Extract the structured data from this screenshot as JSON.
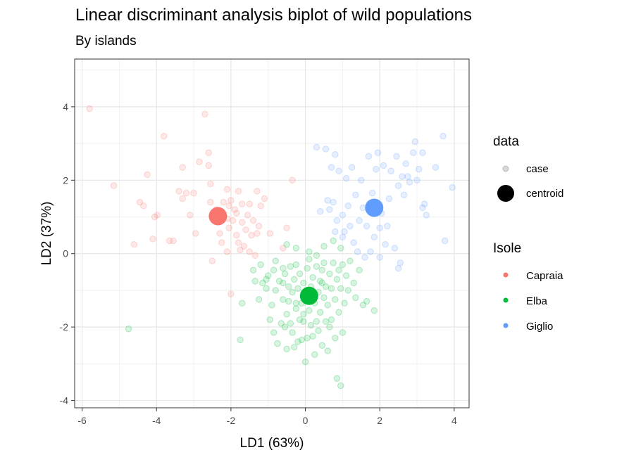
{
  "chart_data": {
    "type": "scatter",
    "title": "Linear discriminant analysis biplot of wild populations",
    "subtitle": "By islands",
    "xlabel": "LD1 (63%)",
    "ylabel": "LD2 (37%)",
    "xlim": [
      -6.2,
      4.4
    ],
    "ylim": [
      -4.2,
      5.3
    ],
    "xticks": [
      -6,
      -4,
      -2,
      0,
      2,
      4
    ],
    "yticks": [
      -4,
      -2,
      0,
      2,
      4
    ],
    "xtick_labels": [
      "-6",
      "-4",
      "-2",
      "0",
      "2",
      "4"
    ],
    "ytick_labels": [
      "-4",
      "-2",
      "0",
      "2",
      "4"
    ],
    "grid": true,
    "legend_position": "right",
    "legend": {
      "data_title": "data",
      "data_items": [
        "case",
        "centroid"
      ],
      "group_title": "Isole",
      "group_items": [
        "Capraia",
        "Elba",
        "Giglio"
      ]
    },
    "colors": {
      "Capraia": "#F8766D",
      "Elba": "#00BA38",
      "Giglio": "#619CFF"
    },
    "series": [
      {
        "name": "Capraia",
        "centroid": [
          -2.35,
          1.02
        ],
        "points": [
          [
            -5.8,
            3.95
          ],
          [
            -5.15,
            1.85
          ],
          [
            -4.25,
            2.15
          ],
          [
            -4.45,
            1.4
          ],
          [
            -4.35,
            1.3
          ],
          [
            -4.6,
            0.25
          ],
          [
            -4.1,
            0.4
          ],
          [
            -4.05,
            1.0
          ],
          [
            -3.98,
            1.05
          ],
          [
            -3.8,
            3.2
          ],
          [
            -3.65,
            0.35
          ],
          [
            -3.55,
            0.35
          ],
          [
            -3.4,
            1.7
          ],
          [
            -3.3,
            2.35
          ],
          [
            -3.3,
            1.5
          ],
          [
            -3.1,
            1.05
          ],
          [
            -3.2,
            1.65
          ],
          [
            -3.0,
            1.65
          ],
          [
            -2.95,
            0.55
          ],
          [
            -2.85,
            2.5
          ],
          [
            -2.7,
            3.8
          ],
          [
            -2.6,
            2.75
          ],
          [
            -2.6,
            2.4
          ],
          [
            -2.55,
            1.4
          ],
          [
            -2.55,
            1.9
          ],
          [
            -2.5,
            -0.2
          ],
          [
            -2.4,
            1.2
          ],
          [
            -2.3,
            0.55
          ],
          [
            -2.25,
            0.3
          ],
          [
            -2.2,
            1.4
          ],
          [
            -2.1,
            0.05
          ],
          [
            -2.1,
            0.95
          ],
          [
            -2.05,
            1.3
          ],
          [
            -2.05,
            0.7
          ],
          [
            -2.0,
            1.45
          ],
          [
            -1.95,
            0.9
          ],
          [
            -1.85,
            0.5
          ],
          [
            -1.85,
            1.1
          ],
          [
            -1.8,
            1.7
          ],
          [
            -1.8,
            0.3
          ],
          [
            -1.75,
            0.1
          ],
          [
            -1.7,
            1.35
          ],
          [
            -1.7,
            0.85
          ],
          [
            -1.65,
            0.2
          ],
          [
            -1.6,
            0.65
          ],
          [
            -1.55,
            1.05
          ],
          [
            -1.5,
            1.35
          ],
          [
            -1.45,
            0.5
          ],
          [
            -1.4,
            0.9
          ],
          [
            -1.3,
            1.7
          ],
          [
            -1.25,
            0.75
          ],
          [
            -1.2,
            1.3
          ],
          [
            -1.1,
            1.5
          ],
          [
            -0.95,
            0.55
          ],
          [
            -2.1,
            1.75
          ],
          [
            -1.9,
            1.2
          ],
          [
            -1.5,
            0.05
          ],
          [
            -0.35,
            2.0
          ],
          [
            -0.5,
            0.7
          ],
          [
            -0.6,
            0.15
          ],
          [
            -1.3,
            0.55
          ],
          [
            -2.0,
            -1.1
          ],
          [
            -1.35,
            -0.05
          ]
        ]
      },
      {
        "name": "Elba",
        "centroid": [
          0.1,
          -1.15
        ],
        "points": [
          [
            -4.75,
            -2.05
          ],
          [
            -1.75,
            -2.35
          ],
          [
            -1.7,
            -1.35
          ],
          [
            -1.4,
            -0.45
          ],
          [
            -1.35,
            -0.75
          ],
          [
            -1.25,
            -1.25
          ],
          [
            -1.2,
            -0.3
          ],
          [
            -1.15,
            -0.8
          ],
          [
            -1.05,
            -0.7
          ],
          [
            -1.0,
            -0.6
          ],
          [
            -0.95,
            -1.8
          ],
          [
            -0.9,
            -1.4
          ],
          [
            -0.85,
            -0.45
          ],
          [
            -0.8,
            -1.0
          ],
          [
            -0.8,
            -0.2
          ],
          [
            -0.75,
            -2.45
          ],
          [
            -0.7,
            -0.75
          ],
          [
            -0.65,
            -1.9
          ],
          [
            -0.6,
            -1.25
          ],
          [
            -0.6,
            -0.8
          ],
          [
            -0.55,
            -0.55
          ],
          [
            -0.55,
            -2.0
          ],
          [
            -0.5,
            -2.6
          ],
          [
            -0.5,
            -1.65
          ],
          [
            -0.45,
            -0.9
          ],
          [
            -0.4,
            -0.35
          ],
          [
            -0.4,
            -1.9
          ],
          [
            -0.35,
            -1.05
          ],
          [
            -0.35,
            -2.15
          ],
          [
            -0.3,
            -0.7
          ],
          [
            -0.3,
            -2.55
          ],
          [
            -0.25,
            -1.5
          ],
          [
            -0.25,
            -0.3
          ],
          [
            -0.2,
            -2.4
          ],
          [
            -0.2,
            -0.95
          ],
          [
            -0.15,
            -1.8
          ],
          [
            -0.15,
            -0.55
          ],
          [
            -0.1,
            -1.35
          ],
          [
            -0.1,
            -2.35
          ],
          [
            -0.05,
            -0.8
          ],
          [
            -0.05,
            -1.65
          ],
          [
            0.0,
            -2.95
          ],
          [
            0.0,
            -1.15
          ],
          [
            0.05,
            -0.4
          ],
          [
            0.05,
            -2.3
          ],
          [
            0.1,
            -1.55
          ],
          [
            0.1,
            -0.15
          ],
          [
            0.15,
            -0.9
          ],
          [
            0.15,
            -1.95
          ],
          [
            0.2,
            -2.25
          ],
          [
            0.2,
            -0.65
          ],
          [
            0.25,
            -1.35
          ],
          [
            0.25,
            -2.75
          ],
          [
            0.3,
            -0.35
          ],
          [
            0.3,
            -1.85
          ],
          [
            0.35,
            -1.05
          ],
          [
            0.35,
            -2.1
          ],
          [
            0.4,
            -0.75
          ],
          [
            0.4,
            -1.6
          ],
          [
            0.45,
            -0.45
          ],
          [
            0.45,
            -2.5
          ],
          [
            0.5,
            -1.2
          ],
          [
            0.5,
            -0.25
          ],
          [
            0.55,
            -1.85
          ],
          [
            0.55,
            -0.9
          ],
          [
            0.6,
            -2.65
          ],
          [
            0.6,
            -1.4
          ],
          [
            0.65,
            -0.55
          ],
          [
            0.7,
            -1.8
          ],
          [
            0.7,
            -0.95
          ],
          [
            0.75,
            -0.25
          ],
          [
            0.8,
            -1.25
          ],
          [
            0.8,
            -2.3
          ],
          [
            0.85,
            -0.7
          ],
          [
            0.85,
            -3.4
          ],
          [
            0.9,
            -1.6
          ],
          [
            0.9,
            -0.45
          ],
          [
            0.95,
            -3.6
          ],
          [
            0.95,
            -0.95
          ],
          [
            1.0,
            -2.15
          ],
          [
            1.05,
            -1.35
          ],
          [
            1.1,
            -0.6
          ],
          [
            1.15,
            -1.0
          ],
          [
            1.2,
            -0.2
          ],
          [
            1.3,
            -0.8
          ],
          [
            1.35,
            -1.2
          ],
          [
            1.45,
            -0.45
          ],
          [
            1.55,
            -1.4
          ],
          [
            1.65,
            -1.3
          ],
          [
            1.85,
            -1.55
          ],
          [
            -0.25,
            -1.35
          ],
          [
            -0.05,
            -1.85
          ],
          [
            0.3,
            -0.05
          ],
          [
            -0.6,
            -0.4
          ],
          [
            0.5,
            0.2
          ],
          [
            0.75,
            0.35
          ],
          [
            0.95,
            0.15
          ],
          [
            -0.5,
            0.25
          ],
          [
            0.1,
            0.05
          ],
          [
            -0.25,
            0.15
          ],
          [
            0.45,
            -0.8
          ],
          [
            0.2,
            -1.1
          ],
          [
            -0.45,
            -1.3
          ],
          [
            0.65,
            -2.0
          ],
          [
            -0.85,
            -2.15
          ],
          [
            1.0,
            -0.3
          ],
          [
            -1.05,
            -0.95
          ]
        ]
      },
      {
        "name": "Giglio",
        "centroid": [
          1.85,
          1.25
        ],
        "points": [
          [
            0.3,
            2.9
          ],
          [
            0.55,
            2.85
          ],
          [
            0.6,
            1.45
          ],
          [
            0.65,
            1.2
          ],
          [
            0.7,
            2.35
          ],
          [
            0.75,
            1.4
          ],
          [
            0.8,
            0.6
          ],
          [
            0.85,
            0.9
          ],
          [
            0.9,
            2.25
          ],
          [
            1.0,
            1.05
          ],
          [
            1.0,
            0.45
          ],
          [
            1.05,
            0.6
          ],
          [
            1.1,
            2.05
          ],
          [
            1.15,
            1.3
          ],
          [
            1.2,
            0.75
          ],
          [
            1.25,
            2.35
          ],
          [
            1.3,
            0.3
          ],
          [
            1.35,
            1.6
          ],
          [
            1.4,
            0.05
          ],
          [
            1.45,
            0.9
          ],
          [
            1.5,
            2.0
          ],
          [
            1.55,
            1.25
          ],
          [
            1.6,
            -0.1
          ],
          [
            1.65,
            0.75
          ],
          [
            1.7,
            2.65
          ],
          [
            1.75,
            0.05
          ],
          [
            1.8,
            1.65
          ],
          [
            1.85,
            0.45
          ],
          [
            1.9,
            2.3
          ],
          [
            2.0,
            -0.1
          ],
          [
            2.05,
            1.1
          ],
          [
            2.1,
            2.4
          ],
          [
            2.15,
            0.25
          ],
          [
            2.2,
            0.75
          ],
          [
            2.25,
            1.5
          ],
          [
            2.3,
            2.25
          ],
          [
            2.4,
            0.15
          ],
          [
            2.45,
            2.65
          ],
          [
            2.5,
            1.85
          ],
          [
            2.55,
            -0.25
          ],
          [
            2.6,
            2.1
          ],
          [
            2.65,
            1.6
          ],
          [
            2.7,
            2.45
          ],
          [
            2.75,
            2.1
          ],
          [
            2.8,
            1.95
          ],
          [
            2.9,
            2.75
          ],
          [
            2.95,
            3.05
          ],
          [
            3.0,
            2.0
          ],
          [
            3.05,
            2.3
          ],
          [
            3.15,
            2.75
          ],
          [
            3.2,
            1.35
          ],
          [
            3.25,
            1.05
          ],
          [
            3.5,
            2.35
          ],
          [
            3.7,
            3.2
          ],
          [
            3.75,
            0.35
          ],
          [
            3.95,
            1.8
          ],
          [
            2.5,
            -0.4
          ],
          [
            1.95,
            2.75
          ],
          [
            0.8,
            2.7
          ],
          [
            0.4,
            1.15
          ],
          [
            3.15,
            1.25
          ],
          [
            2.0,
            0.7
          ]
        ]
      }
    ]
  }
}
